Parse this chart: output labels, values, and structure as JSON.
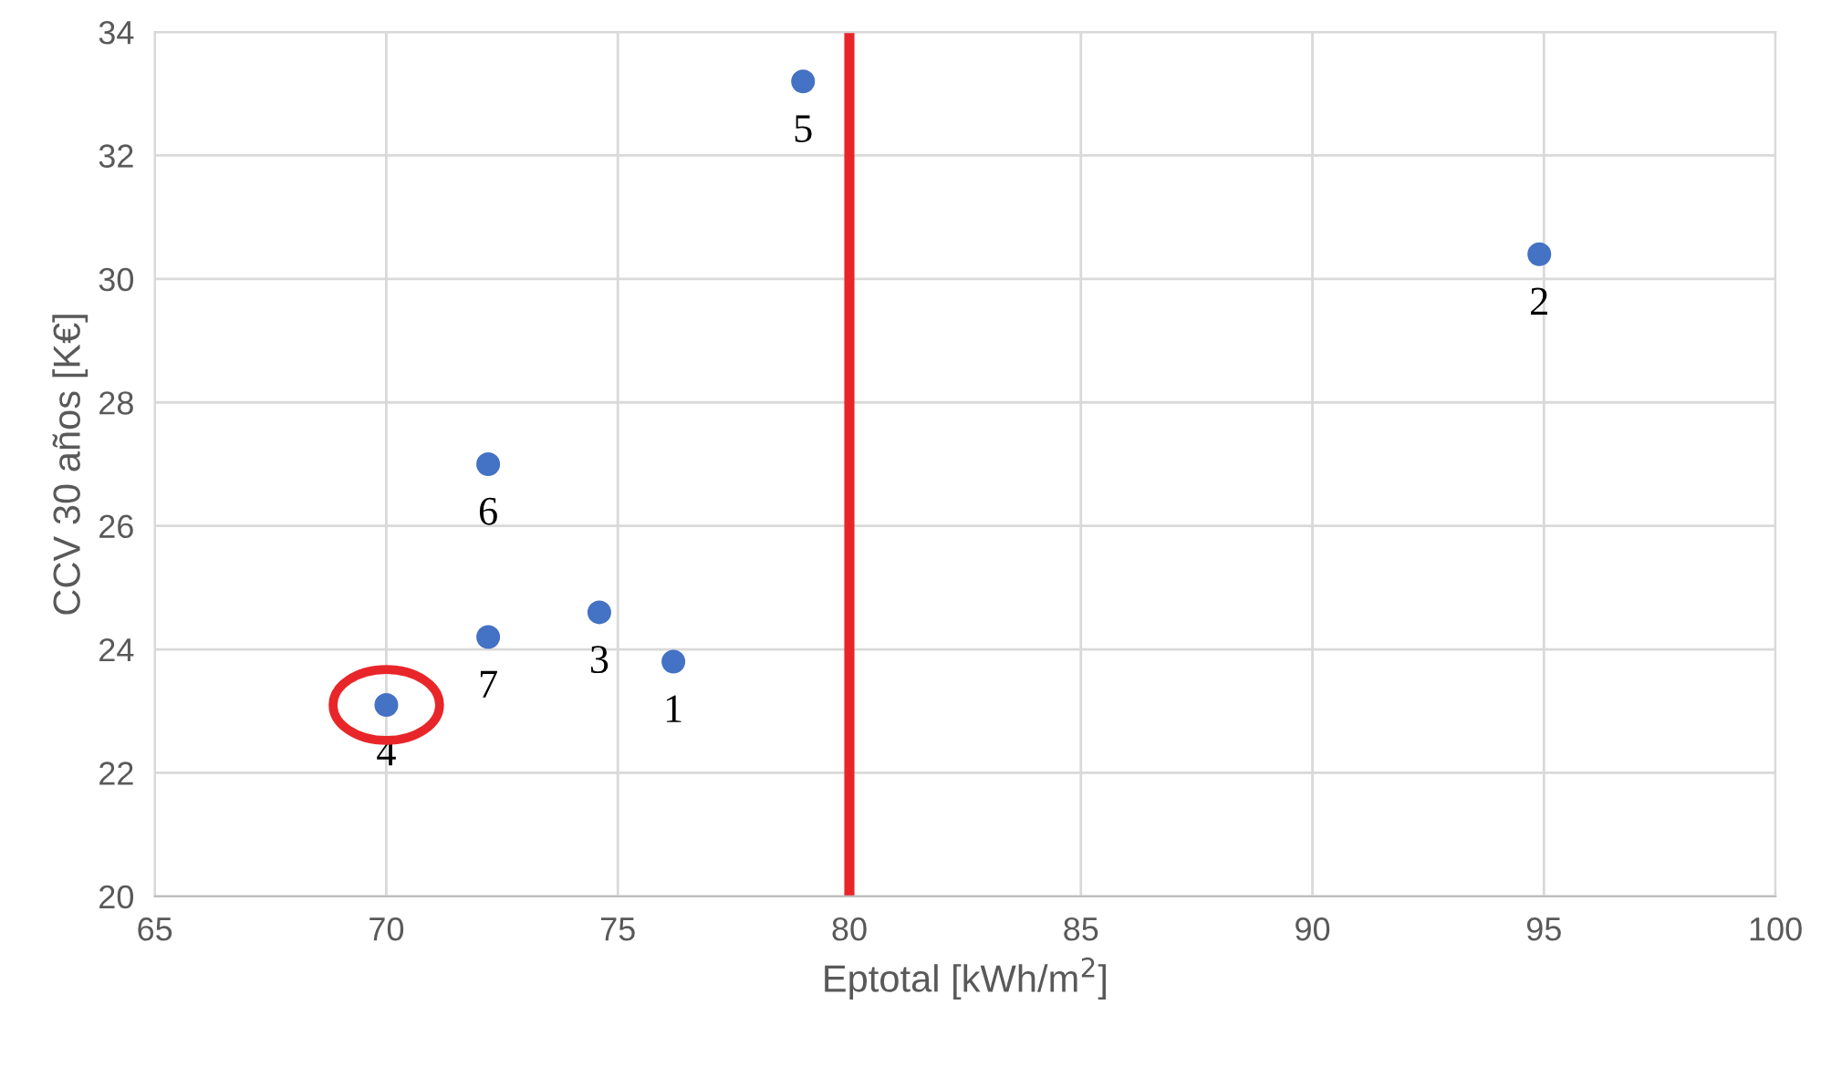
{
  "chart_data": {
    "type": "scatter",
    "xlabel": "Eptotal [kWh/m$^{2}$]",
    "ylabel": "CCV 30 años [K€]",
    "x": [
      76.2,
      94.9,
      74.6,
      70.0,
      79.0,
      72.2,
      72.2
    ],
    "series": [
      {
        "color": "#4472c4",
        "values": [
          23.8,
          30.4,
          24.6,
          23.1,
          33.2,
          27.0,
          24.2
        ]
      }
    ],
    "xlim": [
      65,
      100
    ],
    "xticks": [
      65,
      70,
      75,
      80,
      85,
      90,
      95,
      100
    ],
    "ylim": [
      20,
      34
    ],
    "yticks": [
      20,
      22,
      24,
      26,
      28,
      30,
      32,
      34
    ],
    "grid": true,
    "marker": "circle",
    "ref_lines": [
      {
        "axis": "x",
        "value": 80,
        "color": "#e8262a"
      }
    ],
    "annotations": [
      {
        "text": "1",
        "x": 76.2,
        "y": 23.8
      },
      {
        "text": "2",
        "x": 94.9,
        "y": 30.4
      },
      {
        "text": "3",
        "x": 74.6,
        "y": 24.6
      },
      {
        "text": "4",
        "x": 70.0,
        "y": 23.1
      },
      {
        "text": "5",
        "x": 79.0,
        "y": 33.2
      },
      {
        "text": "6",
        "x": 72.2,
        "y": 27.0
      },
      {
        "text": "7",
        "x": 72.2,
        "y": 24.2
      }
    ]
  }
}
